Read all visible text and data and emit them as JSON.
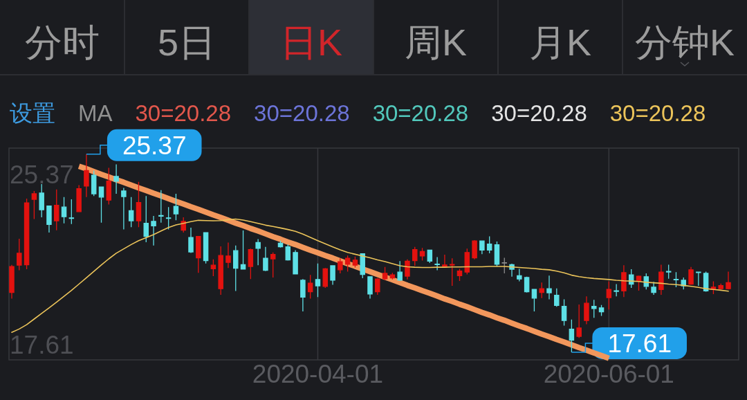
{
  "chart_data": {
    "type": "candlestick",
    "ylim": [
      17.31,
      25.61
    ],
    "grid": "x",
    "tick_labels": "x",
    "legend": "top",
    "categories": [
      null,
      null,
      null,
      null,
      null,
      null,
      null,
      null,
      null,
      null,
      null,
      null,
      null,
      null,
      null,
      null,
      null,
      null,
      null,
      null,
      null,
      null,
      null,
      null,
      null,
      null,
      null,
      null,
      null,
      null,
      null,
      null,
      null,
      null,
      null,
      null,
      null,
      null,
      null,
      null,
      null,
      "2020-04-01",
      null,
      null,
      null,
      null,
      null,
      null,
      null,
      null,
      null,
      null,
      null,
      null,
      null,
      null,
      null,
      null,
      null,
      null,
      null,
      null,
      null,
      null,
      null,
      null,
      null,
      null,
      null,
      null,
      null,
      null,
      null,
      null,
      null,
      null,
      null,
      null,
      null,
      null,
      "2020-06-01",
      null,
      null,
      null,
      null,
      null,
      null,
      null,
      null,
      null,
      null,
      null,
      null,
      null,
      null,
      null,
      null
    ],
    "ohlc": [
      [
        19.95,
        21.03,
        19.71,
        20.97
      ],
      [
        21.02,
        22.06,
        20.82,
        21.49
      ],
      [
        21.04,
        23.63,
        20.86,
        23.46
      ],
      [
        23.6,
        23.93,
        22.83,
        23.82
      ],
      [
        23.85,
        24.2,
        22.9,
        23.19
      ],
      [
        23.34,
        23.36,
        22.3,
        22.62
      ],
      [
        22.76,
        23.99,
        22.39,
        23.37
      ],
      [
        23.3,
        23.69,
        22.66,
        22.92
      ],
      [
        22.87,
        23.6,
        22.63,
        22.86
      ],
      [
        23.12,
        24.16,
        23.12,
        24.02
      ],
      [
        24.12,
        25.37,
        23.69,
        24.73
      ],
      [
        24.55,
        24.73,
        23.73,
        23.82
      ],
      [
        24.09,
        24.09,
        22.69,
        23.69
      ],
      [
        23.57,
        24.84,
        23.4,
        24.32
      ],
      [
        24.5,
        24.97,
        23.82,
        24.31
      ],
      [
        23.93,
        24.05,
        22.42,
        23.71
      ],
      [
        23.16,
        23.69,
        22.51,
        22.76
      ],
      [
        22.76,
        24.29,
        22.51,
        23.48
      ],
      [
        22.66,
        23.73,
        21.92,
        22.15
      ],
      [
        22.74,
        22.95,
        21.79,
        22.56
      ],
      [
        22.96,
        23.96,
        22.69,
        22.95
      ],
      [
        22.87,
        23.3,
        22.42,
        22.86
      ],
      [
        23.33,
        23.82,
        22.78,
        23.03
      ],
      [
        22.39,
        22.9,
        22.3,
        22.74
      ],
      [
        22.11,
        22.49,
        21.5,
        21.54
      ],
      [
        21.31,
        22.15,
        20.72,
        22.15
      ],
      [
        22.3,
        22.3,
        21.09,
        21.2
      ],
      [
        20.88,
        21.25,
        20.59,
        21.02
      ],
      [
        20.1,
        21.76,
        19.86,
        21.4
      ],
      [
        21.13,
        21.91,
        20.91,
        21.38
      ],
      [
        21.59,
        21.79,
        20.01,
        20.9
      ],
      [
        21.04,
        22.38,
        20.87,
        20.87
      ],
      [
        20.97,
        21.67,
        20.48,
        21.63
      ],
      [
        21.91,
        22.04,
        21.02,
        21.68
      ],
      [
        21.29,
        21.74,
        20.79,
        20.82
      ],
      [
        21.27,
        21.52,
        20.54,
        21.44
      ],
      [
        21.88,
        21.98,
        21.71,
        21.74
      ],
      [
        21.74,
        21.83,
        21.2,
        21.23
      ],
      [
        21.52,
        21.61,
        20.68,
        20.68
      ],
      [
        20.43,
        20.48,
        19.21,
        19.77
      ],
      [
        19.98,
        20.64,
        19.71,
        20.32
      ],
      [
        20.46,
        21.09,
        19.77,
        20.21
      ],
      [
        20.19,
        20.91,
        20.13,
        20.88
      ],
      [
        21.0,
        21.0,
        20.25,
        20.43
      ],
      [
        20.84,
        21.29,
        20.7,
        21.16
      ],
      [
        21.06,
        21.4,
        20.77,
        21.29
      ],
      [
        21.02,
        21.36,
        20.93,
        21.22
      ],
      [
        21.47,
        21.47,
        20.51,
        20.66
      ],
      [
        20.57,
        20.57,
        19.71,
        19.89
      ],
      [
        19.98,
        20.52,
        19.86,
        20.48
      ],
      [
        20.49,
        20.95,
        20.43,
        20.7
      ],
      [
        20.52,
        20.72,
        20.46,
        20.64
      ],
      [
        20.75,
        21.18,
        20.4,
        20.43
      ],
      [
        20.59,
        21.25,
        20.46,
        21.18
      ],
      [
        21.2,
        21.74,
        21.0,
        21.63
      ],
      [
        21.38,
        21.7,
        21.2,
        21.56
      ],
      [
        21.61,
        21.63,
        21.11,
        21.18
      ],
      [
        21.06,
        21.34,
        20.82,
        21.05
      ],
      [
        20.95,
        21.43,
        20.95,
        21.03
      ],
      [
        21.02,
        21.29,
        20.21,
        21.05
      ],
      [
        20.61,
        20.88,
        20.4,
        20.79
      ],
      [
        20.75,
        21.67,
        20.66,
        21.52
      ],
      [
        21.31,
        22.0,
        21.25,
        21.97
      ],
      [
        21.97,
        21.97,
        21.45,
        21.61
      ],
      [
        21.85,
        22.15,
        21.49,
        21.61
      ],
      [
        21.82,
        21.95,
        20.97,
        21.06
      ],
      [
        21.11,
        21.31,
        20.7,
        21.11
      ],
      [
        21.04,
        21.08,
        20.57,
        20.86
      ],
      [
        20.61,
        20.88,
        20.39,
        20.48
      ],
      [
        20.54,
        20.57,
        19.95,
        19.98
      ],
      [
        20.07,
        20.07,
        19.21,
        19.73
      ],
      [
        19.95,
        20.34,
        19.73,
        20.1
      ],
      [
        20.1,
        20.61,
        19.68,
        19.94
      ],
      [
        19.84,
        20.11,
        19.39,
        19.44
      ],
      [
        19.41,
        19.68,
        18.65,
        18.85
      ],
      [
        18.51,
        18.89,
        17.61,
        18.08
      ],
      [
        18.23,
        19.48,
        18.17,
        18.56
      ],
      [
        18.85,
        19.8,
        18.71,
        19.53
      ],
      [
        19.41,
        19.66,
        18.96,
        19.32
      ],
      [
        19.35,
        19.46,
        19.03,
        19.19
      ],
      [
        19.75,
        20.39,
        19.28,
        20.07
      ],
      [
        20.01,
        20.28,
        19.8,
        20.0
      ],
      [
        20.01,
        21.02,
        19.77,
        20.73
      ],
      [
        20.64,
        20.86,
        20.13,
        20.28
      ],
      [
        20.39,
        20.61,
        20.02,
        20.59
      ],
      [
        20.57,
        20.7,
        20.07,
        20.19
      ],
      [
        20.16,
        20.37,
        19.86,
        19.95
      ],
      [
        20.07,
        21.04,
        19.86,
        20.75
      ],
      [
        20.77,
        21.04,
        20.49,
        20.76
      ],
      [
        20.46,
        20.75,
        20.16,
        20.45
      ],
      [
        20.43,
        20.54,
        20.07,
        20.21
      ],
      [
        20.28,
        20.95,
        20.25,
        20.84
      ],
      [
        20.75,
        20.77,
        20.21,
        20.73
      ],
      [
        20.7,
        20.77,
        19.98,
        20.01
      ],
      [
        20.07,
        20.39,
        19.89,
        20.16
      ],
      [
        20.1,
        20.3,
        20.07,
        20.22
      ],
      [
        20.1,
        20.77,
        20.07,
        20.34
      ]
    ],
    "colors": [
      "#e3120f",
      "#e3120f",
      "#e3120f",
      "#e3120f",
      "#5ee0e6",
      "#5ee0e6",
      "#e3120f",
      "#5ee0e6",
      "#5ee0e6",
      "#e3120f",
      "#e3120f",
      "#5ee0e6",
      "#5ee0e6",
      "#e3120f",
      "#5ee0e6",
      "#5ee0e6",
      "#5ee0e6",
      "#e3120f",
      "#5ee0e6",
      "#5ee0e6",
      "#5ee0e6",
      "#5ee0e6",
      "#5ee0e6",
      "#e3120f",
      "#5ee0e6",
      "#e3120f",
      "#5ee0e6",
      "#e3120f",
      "#e3120f",
      "#e3120f",
      "#5ee0e6",
      "#5ee0e6",
      "#e3120f",
      "#5ee0e6",
      "#5ee0e6",
      "#e3120f",
      "#5ee0e6",
      "#5ee0e6",
      "#5ee0e6",
      "#5ee0e6",
      "#e3120f",
      "#5ee0e6",
      "#e3120f",
      "#5ee0e6",
      "#e3120f",
      "#e3120f",
      "#e3120f",
      "#5ee0e6",
      "#5ee0e6",
      "#e3120f",
      "#e3120f",
      "#e3120f",
      "#5ee0e6",
      "#e3120f",
      "#e3120f",
      "#e3120f",
      "#5ee0e6",
      "#5ee0e6",
      "#e3120f",
      "#e3120f",
      "#e3120f",
      "#e3120f",
      "#e3120f",
      "#5ee0e6",
      "#5ee0e6",
      "#5ee0e6",
      "#8c8c8c",
      "#5ee0e6",
      "#5ee0e6",
      "#5ee0e6",
      "#5ee0e6",
      "#e3120f",
      "#5ee0e6",
      "#5ee0e6",
      "#5ee0e6",
      "#5ee0e6",
      "#e3120f",
      "#e3120f",
      "#5ee0e6",
      "#5ee0e6",
      "#e3120f",
      "#5ee0e6",
      "#e3120f",
      "#5ee0e6",
      "#e3120f",
      "#5ee0e6",
      "#5ee0e6",
      "#e3120f",
      "#5ee0e6",
      "#5ee0e6",
      "#5ee0e6",
      "#e3120f",
      "#5ee0e6",
      "#5ee0e6",
      "#e3120f",
      "#e3120f",
      "#e3120f"
    ],
    "series": [
      {
        "type": "line",
        "name": "30=20.28",
        "color": "#ecc45a",
        "values": [
          18.39,
          18.52,
          18.69,
          18.91,
          19.13,
          19.35,
          19.57,
          19.8,
          20.03,
          20.28,
          20.53,
          20.78,
          21.03,
          21.27,
          21.49,
          21.66,
          21.83,
          21.98,
          22.1,
          22.22,
          22.36,
          22.5,
          22.6,
          22.66,
          22.73,
          22.78,
          22.77,
          22.76,
          22.77,
          22.8,
          22.83,
          22.79,
          22.73,
          22.66,
          22.59,
          22.54,
          22.48,
          22.42,
          22.35,
          22.24,
          22.11,
          21.98,
          21.86,
          21.74,
          21.62,
          21.52,
          21.45,
          21.38,
          21.31,
          21.23,
          21.16,
          21.08,
          21.0,
          20.96,
          20.94,
          20.93,
          20.93,
          20.94,
          20.94,
          20.95,
          20.95,
          20.96,
          20.96,
          20.96,
          20.97,
          20.97,
          20.97,
          20.95,
          20.93,
          20.91,
          20.89,
          20.86,
          20.84,
          20.79,
          20.72,
          20.63,
          20.57,
          20.53,
          20.5,
          20.48,
          20.46,
          20.43,
          20.41,
          20.4,
          20.38,
          20.35,
          20.33,
          20.31,
          20.28,
          20.26,
          20.23,
          20.19,
          20.15,
          20.1,
          20.07,
          20.04,
          20.0
        ]
      },
      {
        "type": "line",
        "color": "#f2975c",
        "values": [
          null,
          null,
          null,
          null,
          null,
          null,
          null,
          null,
          null,
          24.9,
          24.8,
          24.69,
          24.58,
          24.48,
          24.37,
          24.27,
          24.16,
          24.05,
          23.95,
          23.84,
          23.74,
          23.63,
          23.52,
          23.42,
          23.31,
          23.21,
          23.1,
          22.99,
          22.89,
          22.78,
          22.67,
          22.57,
          22.46,
          22.36,
          22.25,
          22.14,
          22.04,
          21.93,
          21.83,
          21.72,
          21.61,
          21.51,
          21.4,
          21.3,
          21.19,
          21.08,
          20.98,
          20.87,
          20.77,
          20.66,
          20.55,
          20.45,
          20.34,
          20.23,
          20.13,
          20.02,
          19.92,
          19.81,
          19.7,
          19.6,
          19.49,
          19.39,
          19.28,
          19.17,
          19.07,
          18.96,
          18.86,
          18.75,
          18.64,
          18.54,
          18.43,
          18.32,
          18.22,
          18.11,
          18.01,
          17.9,
          17.79,
          17.69,
          17.58,
          17.48,
          17.37,
          null,
          null,
          null,
          null,
          null,
          null,
          null,
          null,
          null,
          null,
          null,
          null,
          null,
          null,
          null,
          null
        ]
      }
    ],
    "annotations": [
      "分时",
      "5日",
      "日K",
      "周K",
      "月K",
      "分钟K",
      "设置",
      "MA",
      "30=20.28",
      "30=20.28",
      "30=20.28",
      "30=20.28",
      "25.37",
      "17.61",
      "25.37",
      "17.61"
    ]
  }
}
